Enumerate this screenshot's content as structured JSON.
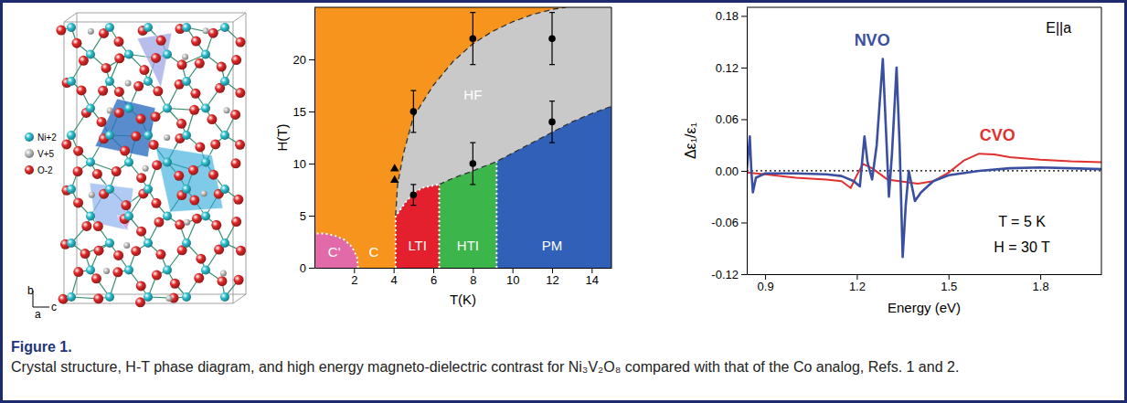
{
  "chart_data": [
    {
      "type": "phase_diagram",
      "xlabel": "T(K)",
      "ylabel": "H(T)",
      "xlim": [
        0,
        15
      ],
      "ylim": [
        0,
        25
      ],
      "xticks": [
        2,
        4,
        6,
        8,
        10,
        12,
        14
      ],
      "yticks": [
        0,
        5,
        10,
        15,
        20
      ],
      "regions": [
        {
          "name": "C",
          "color": "#f7941d",
          "x": [
            0,
            15,
            15,
            0
          ],
          "y": [
            0,
            0,
            25,
            25
          ],
          "label_x": 3.0,
          "label_y": 1.4
        },
        {
          "name": "HF",
          "color": "#c9c9c9",
          "x": [
            4.1,
            4.2,
            4.5,
            5,
            6,
            7,
            8,
            9,
            10,
            11,
            12,
            12.7,
            15,
            15,
            4.1
          ],
          "y": [
            5,
            8,
            11,
            14.5,
            17.5,
            19.8,
            21.5,
            22.7,
            23.6,
            24.3,
            24.8,
            25,
            25,
            0,
            0
          ],
          "label_x": 8.0,
          "label_y": 16.5
        },
        {
          "name": "PM",
          "color": "#3060b8",
          "x": [
            9.2,
            15,
            15,
            14,
            13,
            12,
            11,
            10,
            9.2
          ],
          "y": [
            0,
            0,
            15.5,
            14.8,
            14,
            13,
            12,
            11,
            10.2
          ],
          "label_x": 12.0,
          "label_y": 2.0
        },
        {
          "name": "HTI",
          "color": "#3cb64b",
          "x": [
            6.3,
            9.2,
            9.2,
            8,
            7,
            6.3
          ],
          "y": [
            0,
            0,
            10.2,
            9.3,
            8.6,
            8
          ],
          "label_x": 7.75,
          "label_y": 2.0
        },
        {
          "name": "LTI",
          "color": "#e5202e",
          "x": [
            4.1,
            6.3,
            6.3,
            5.5,
            5.1,
            4.6,
            4.2,
            4.1
          ],
          "y": [
            0,
            0,
            8,
            7.7,
            7.3,
            6.3,
            5.2,
            5
          ],
          "label_x": 5.2,
          "label_y": 2.0
        },
        {
          "name": "C'",
          "color": "#e26aa8",
          "x": [
            0,
            2.2,
            2.15,
            1.9,
            1.5,
            1.0,
            0.5,
            0
          ],
          "y": [
            0,
            0,
            1.0,
            2.0,
            2.7,
            3.1,
            3.3,
            3.3
          ],
          "label_x": 1.0,
          "label_y": 1.4
        }
      ],
      "boundaries": [
        {
          "line_style": "dashed",
          "color": "#333333",
          "x": [
            4.1,
            4.2,
            4.5,
            5,
            6,
            7,
            8,
            9,
            10,
            11,
            12,
            12.7
          ],
          "y": [
            5,
            8,
            11,
            14.5,
            17.5,
            19.8,
            21.5,
            22.7,
            23.6,
            24.3,
            24.8,
            25
          ]
        },
        {
          "line_style": "dashed",
          "color": "#333333",
          "x": [
            6.3,
            7,
            8,
            9.2,
            10,
            11,
            12,
            13,
            14,
            15
          ],
          "y": [
            8,
            8.6,
            9.3,
            10.2,
            11,
            12,
            13,
            14,
            14.8,
            15.5
          ]
        },
        {
          "line_style": "dotted",
          "color": "#ffffff",
          "x": [
            2.2,
            2.15,
            1.9,
            1.5,
            1.0,
            0.5,
            0
          ],
          "y": [
            0,
            1.0,
            2.0,
            2.7,
            3.1,
            3.3,
            3.3
          ]
        },
        {
          "line_style": "dotted",
          "color": "#ffffff",
          "x": [
            4.1,
            4.1,
            4.2,
            4.6,
            5.1,
            5.5,
            6.3
          ],
          "y": [
            0,
            5,
            5.2,
            6.3,
            7.3,
            7.7,
            8
          ]
        },
        {
          "line_style": "dotted",
          "color": "#ffffff",
          "x": [
            6.3,
            6.3
          ],
          "y": [
            0,
            8
          ]
        },
        {
          "line_style": "dotted",
          "color": "#ffffff",
          "x": [
            9.2,
            9.2
          ],
          "y": [
            0,
            10.2
          ]
        }
      ],
      "series": [
        {
          "marker": "circle",
          "color": "#000000",
          "x": [
            5,
            5,
            8,
            8,
            12,
            12
          ],
          "values": [
            15,
            7,
            22,
            10,
            22,
            14
          ],
          "errors": [
            2,
            1,
            2.5,
            2,
            2.5,
            2
          ]
        },
        {
          "marker": "triangle",
          "color": "#000000",
          "x": [
            4.05,
            4.05
          ],
          "values": [
            9.5,
            8.4
          ]
        }
      ]
    },
    {
      "type": "line",
      "xlabel": "Energy (eV)",
      "ylabel": "Δε₁/ε₁",
      "xlim": [
        0.84,
        2.0
      ],
      "ylim": [
        -0.12,
        0.19
      ],
      "xticks": [
        0.9,
        1.2,
        1.5,
        1.8
      ],
      "yticks": [
        -0.12,
        -0.06,
        {
          "value": 0,
          "label": "0.00"
        },
        0.06,
        0.12,
        0.18
      ],
      "reference_line": {
        "value": 0,
        "line_style": "dotted",
        "color": "#000000"
      },
      "series": [
        {
          "name": "NVO",
          "color": "#3a4fa0",
          "x": [
            0.84,
            0.845,
            0.85,
            0.855,
            0.86,
            0.87,
            0.9,
            1.0,
            1.1,
            1.15,
            1.19,
            1.21,
            1.225,
            1.235,
            1.25,
            1.265,
            1.285,
            1.295,
            1.305,
            1.315,
            1.33,
            1.34,
            1.35,
            1.36,
            1.37,
            1.39,
            1.41,
            1.45,
            1.5,
            1.6,
            1.7,
            1.8,
            1.9,
            2.0
          ],
          "values": [
            0.0,
            0.02,
            0.04,
            0.0,
            -0.025,
            -0.008,
            -0.003,
            -0.003,
            -0.004,
            -0.006,
            -0.012,
            -0.018,
            0.04,
            0.01,
            -0.01,
            0.03,
            0.13,
            0.05,
            -0.03,
            0.02,
            0.12,
            0.03,
            -0.1,
            -0.04,
            0.0,
            -0.035,
            -0.025,
            -0.012,
            -0.005,
            0.0,
            0.003,
            0.004,
            0.003,
            0.002
          ]
        },
        {
          "name": "CVO",
          "color": "#e03030",
          "x": [
            0.84,
            0.9,
            1.0,
            1.1,
            1.15,
            1.18,
            1.2,
            1.22,
            1.25,
            1.3,
            1.4,
            1.45,
            1.5,
            1.55,
            1.6,
            1.65,
            1.7,
            1.8,
            1.9,
            2.0
          ],
          "values": [
            -0.002,
            -0.004,
            -0.008,
            -0.01,
            -0.012,
            -0.02,
            -0.005,
            0.008,
            0.003,
            -0.01,
            -0.015,
            -0.012,
            -0.002,
            0.012,
            0.02,
            0.019,
            0.016,
            0.013,
            0.011,
            0.01
          ]
        }
      ],
      "annotations": [
        {
          "text": "NVO",
          "x": 1.25,
          "y": 0.15,
          "color": "#3a4fa0"
        },
        {
          "text": "CVO",
          "x": 1.66,
          "y": 0.04,
          "color": "#e03030"
        },
        {
          "text": "E||a",
          "x": 1.86,
          "y": 0.165
        },
        {
          "text": "T = 5 K",
          "x": 1.74,
          "y": -0.06
        },
        {
          "text": "H = 30 T",
          "x": 1.74,
          "y": -0.09
        }
      ]
    }
  ],
  "structure": {
    "legend": [
      {
        "label": "Ni+2",
        "color": "#2bbfd0"
      },
      {
        "label": "V+5",
        "color": "#c0c0c0"
      },
      {
        "label": "O-2",
        "color": "#e02828"
      }
    ],
    "axes": [
      "b",
      "a",
      "c"
    ]
  },
  "caption": {
    "label": "Figure 1.",
    "text": "Crystal structure, H-T phase diagram, and high energy magneto-dielectric contrast for Ni₃V₂O₈ compared with that of the Co analog, Refs. 1 and 2."
  }
}
